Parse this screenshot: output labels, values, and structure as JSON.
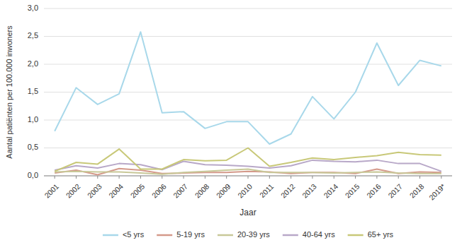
{
  "chart_data": {
    "type": "line",
    "x_label": "Jaar",
    "y_label": "Aantal patiënten per 100.000 inwoners",
    "x": [
      2001,
      2002,
      2003,
      2004,
      2005,
      2006,
      2007,
      2008,
      2009,
      2010,
      2011,
      2012,
      2013,
      2014,
      2015,
      2016,
      2017,
      2018,
      2019
    ],
    "series": [
      {
        "name": "<5 yrs",
        "color": "#A8D8EA",
        "values": [
          0.8,
          1.58,
          1.28,
          1.47,
          2.58,
          1.13,
          1.15,
          0.85,
          0.97,
          0.97,
          0.57,
          0.75,
          1.42,
          1.02,
          1.5,
          2.38,
          1.62,
          2.07,
          1.97
        ]
      },
      {
        "name": "5-19 yrs",
        "color": "#D4998A",
        "values": [
          0.05,
          0.1,
          0.02,
          0.13,
          0.1,
          0.04,
          0.05,
          0.06,
          0.06,
          0.08,
          0.07,
          0.04,
          0.06,
          0.06,
          0.04,
          0.12,
          0.04,
          0.07,
          0.06
        ]
      },
      {
        "name": "20-39 yrs",
        "color": "#C8C898",
        "values": [
          0.07,
          0.08,
          0.07,
          0.07,
          0.05,
          0.03,
          0.06,
          0.08,
          0.1,
          0.12,
          0.06,
          0.06,
          0.06,
          0.05,
          0.06,
          0.07,
          0.05,
          0.04,
          0.04
        ]
      },
      {
        "name": "40-64 yrs",
        "color": "#B8A8C8",
        "values": [
          0.1,
          0.18,
          0.14,
          0.22,
          0.2,
          0.11,
          0.26,
          0.2,
          0.19,
          0.17,
          0.14,
          0.18,
          0.28,
          0.26,
          0.25,
          0.28,
          0.22,
          0.22,
          0.08
        ]
      },
      {
        "name": "65+ yrs",
        "color": "#C8C878",
        "values": [
          0.08,
          0.24,
          0.21,
          0.48,
          0.12,
          0.12,
          0.29,
          0.27,
          0.28,
          0.5,
          0.17,
          0.24,
          0.32,
          0.29,
          0.33,
          0.36,
          0.42,
          0.38,
          0.37
        ]
      }
    ],
    "xlim": [
      2000.5,
      2019.5
    ],
    "xticks": [
      2001,
      2002,
      2003,
      2004,
      2005,
      2006,
      2007,
      2008,
      2009,
      2010,
      2011,
      2012,
      2013,
      2014,
      2015,
      2016,
      2017,
      2018,
      {
        "value": 2019,
        "label": "2019*"
      }
    ],
    "ylim": [
      0,
      3.0
    ],
    "yticks": [
      {
        "value": 0.0,
        "label": "0,0"
      },
      {
        "value": 0.5,
        "label": "0,5"
      },
      {
        "value": 1.0,
        "label": "1,0"
      },
      {
        "value": 1.5,
        "label": "1,5"
      },
      {
        "value": 2.0,
        "label": "2,0"
      },
      {
        "value": 2.5,
        "label": "2,5"
      },
      {
        "value": 3.0,
        "label": "3,0"
      }
    ],
    "grid": true,
    "legend": "bottom"
  }
}
